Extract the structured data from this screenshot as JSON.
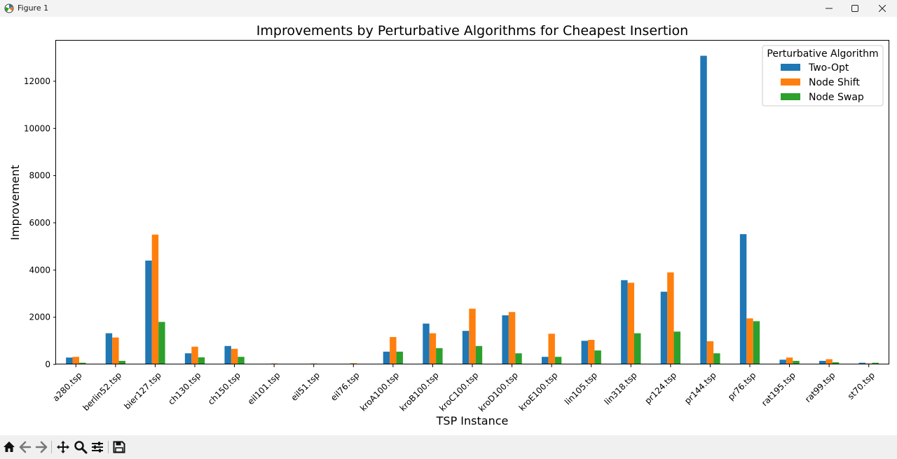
{
  "window": {
    "title": "Figure 1"
  },
  "toolbar": {
    "items": [
      "home-icon",
      "back-icon",
      "forward-icon",
      "pan-icon",
      "zoom-icon",
      "configure-subplots-icon",
      "save-icon"
    ]
  },
  "colors": {
    "two_opt": "#1f77b4",
    "node_shift": "#ff7f0e",
    "node_swap": "#2ca02c"
  },
  "chart_data": {
    "type": "bar",
    "title": "Improvements by Perturbative Algorithms for Cheapest Insertion",
    "xlabel": "TSP Instance",
    "ylabel": "Improvement",
    "ylim": [
      0,
      13750
    ],
    "yticks": [
      0,
      2000,
      4000,
      6000,
      8000,
      10000,
      12000
    ],
    "grid": false,
    "legend": {
      "title": "Perturbative Algorithm",
      "position": "top-right"
    },
    "categories": [
      "a280.tsp",
      "berlin52.tsp",
      "bier127.tsp",
      "ch130.tsp",
      "ch150.tsp",
      "eil101.tsp",
      "eil51.tsp",
      "eil76.tsp",
      "kroA100.tsp",
      "kroB100.tsp",
      "kroC100.tsp",
      "kroD100.tsp",
      "kroE100.tsp",
      "lin105.tsp",
      "lin318.tsp",
      "pr124.tsp",
      "pr144.tsp",
      "pr76.tsp",
      "rat195.tsp",
      "rat99.tsp",
      "st70.tsp"
    ],
    "series": [
      {
        "name": "Two-Opt",
        "color": "#1f77b4",
        "values": [
          290,
          1320,
          4400,
          470,
          780,
          20,
          15,
          20,
          540,
          1730,
          1420,
          2080,
          320,
          1000,
          3570,
          3080,
          13080,
          5520,
          200,
          150,
          70
        ]
      },
      {
        "name": "Node Shift",
        "color": "#ff7f0e",
        "values": [
          320,
          1140,
          5500,
          750,
          660,
          40,
          40,
          50,
          1160,
          1320,
          2360,
          2220,
          1300,
          1040,
          3460,
          3900,
          980,
          1950,
          290,
          220,
          40
        ]
      },
      {
        "name": "Node Swap",
        "color": "#2ca02c",
        "values": [
          70,
          150,
          1800,
          300,
          320,
          10,
          10,
          10,
          540,
          690,
          780,
          470,
          320,
          590,
          1320,
          1390,
          470,
          1830,
          150,
          90,
          70
        ]
      }
    ]
  }
}
